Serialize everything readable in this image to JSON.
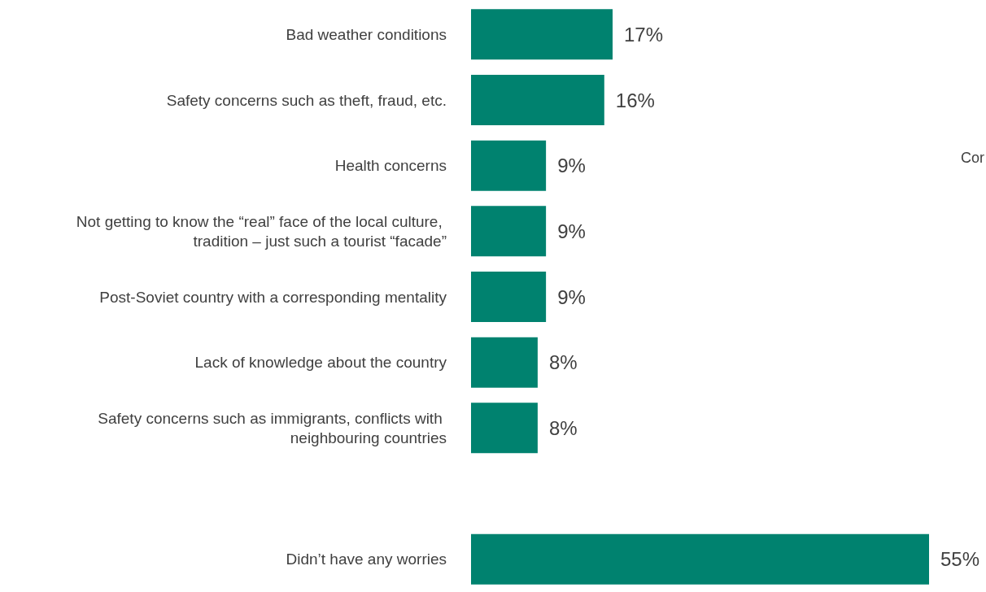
{
  "chart_data": {
    "type": "bar",
    "orientation": "horizontal",
    "categories": [
      "Bad weather conditions",
      "Safety concerns such as theft, fraud, etc.",
      "Health concerns",
      "Not getting to know the “real” face of the local culture, tradition – just such a tourist “facade”",
      "Post-Soviet country with a corresponding mentality",
      "Lack of knowledge about the country",
      "Safety concerns such as immigrants, conflicts with neighbouring countries",
      null,
      "Didn’t have any worries"
    ],
    "values": [
      17,
      16,
      9,
      9,
      9,
      8,
      8,
      null,
      55
    ],
    "value_labels": [
      "17%",
      "16%",
      "9%",
      "9%",
      "9%",
      "8%",
      "8%",
      null,
      "55%"
    ],
    "color": "#00826f",
    "annotations": [
      "Cor"
    ]
  }
}
